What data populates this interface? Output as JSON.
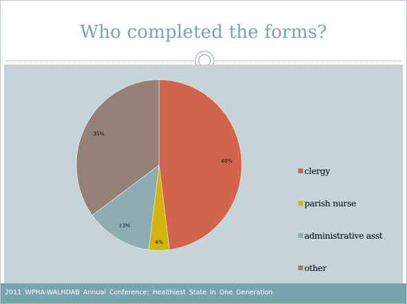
{
  "slide": {
    "title": "Who completed the forms?",
    "footer": "2011 WPHA-WALHDAB Annual Conference: Healthiest State in One Generation",
    "colors": {
      "accent": "#78a4ae",
      "chart_background": "#c6d3d9"
    }
  },
  "chart_data": {
    "type": "pie",
    "start_angle_deg": 0,
    "direction": "clockwise",
    "legend_position": "right",
    "slices": [
      {
        "label": "clergy",
        "value": 48,
        "display": "48%",
        "color": "#d0644c"
      },
      {
        "label": "parish nurse",
        "value": 4,
        "display": "4%",
        "color": "#d4b408"
      },
      {
        "label": "administrative asst",
        "value": 13,
        "display": "13%",
        "color": "#8eadb3"
      },
      {
        "label": "other",
        "value": 35,
        "display": "35%",
        "color": "#958276"
      }
    ]
  }
}
